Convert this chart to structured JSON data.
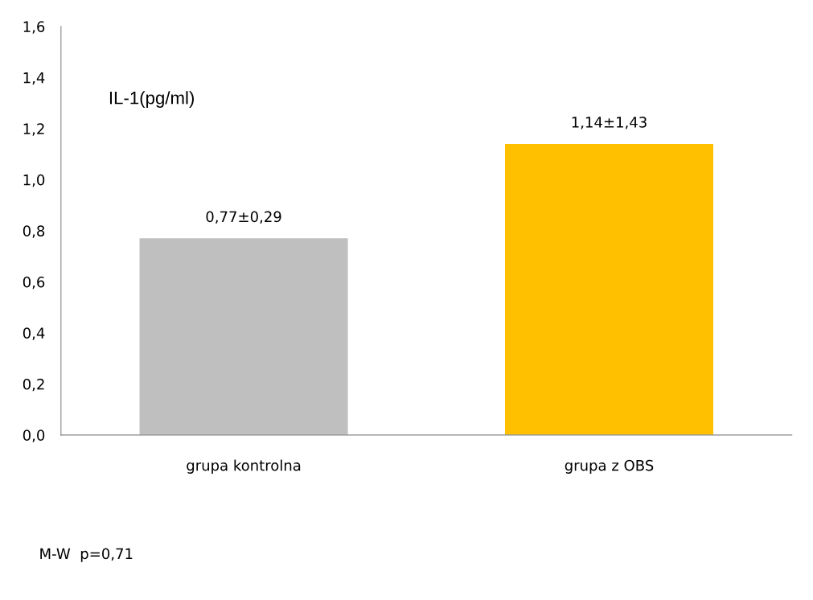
{
  "chart_data": {
    "type": "bar",
    "title": "IL-1(pg/ml)",
    "categories": [
      "grupa kontrolna",
      "grupa z OBS"
    ],
    "values": [
      0.77,
      1.14
    ],
    "colors": [
      "#bfbfbf",
      "#ffc000"
    ],
    "value_labels": [
      "0,77±0,29",
      "1,14±1,43"
    ],
    "ylim": [
      0,
      1.6
    ],
    "yticks": [
      {
        "value": 0,
        "label": "0,0"
      },
      {
        "value": 0.2,
        "label": "0,2"
      },
      {
        "value": 0.4,
        "label": "0,4"
      },
      {
        "value": 0.6,
        "label": "0,6"
      },
      {
        "value": 0.8,
        "label": "0,8"
      },
      {
        "value": 1.0,
        "label": "1,0"
      },
      {
        "value": 1.2,
        "label": "1,2"
      },
      {
        "value": 1.4,
        "label": "1,4"
      },
      {
        "value": 1.6,
        "label": "1,6"
      }
    ],
    "annotations": [
      "M-W  p=0,71"
    ],
    "grid": false,
    "legend": false
  }
}
